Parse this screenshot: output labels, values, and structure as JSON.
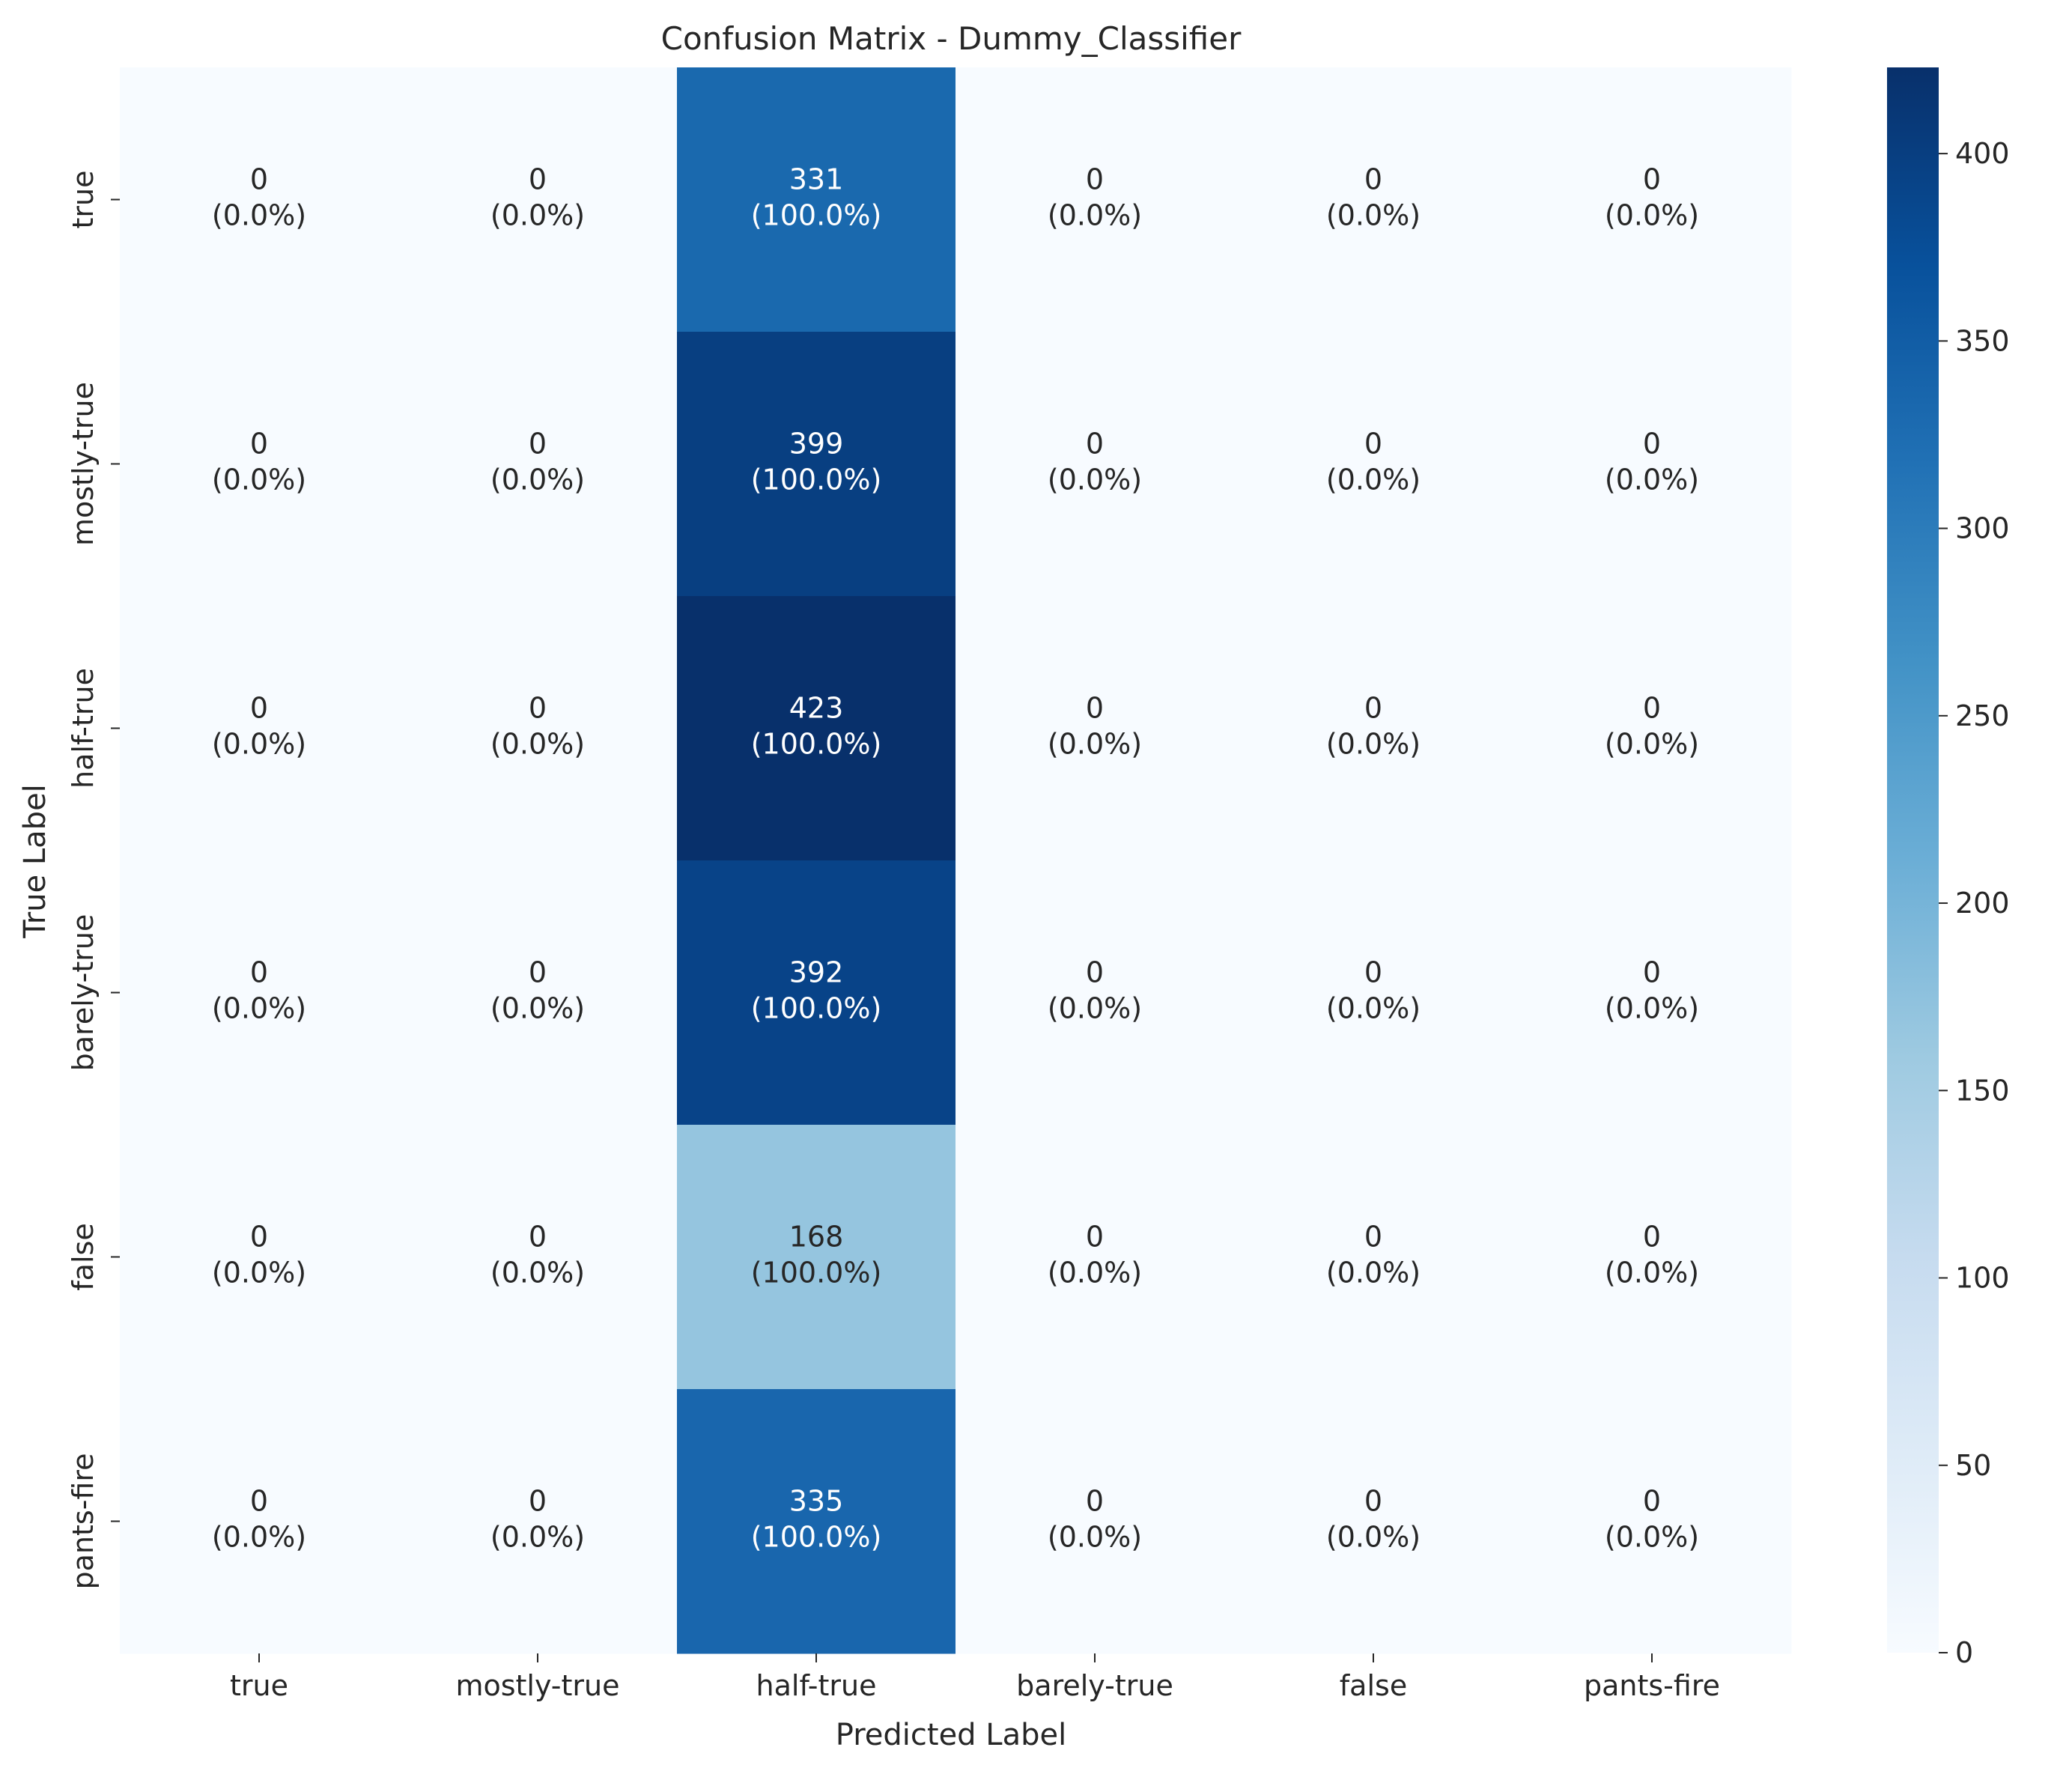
{
  "chart_data": {
    "type": "heatmap",
    "title": "Confusion Matrix - Dummy_Classifier",
    "xlabel": "Predicted Label",
    "ylabel": "True Label",
    "x_categories": [
      "true",
      "mostly-true",
      "half-true",
      "barely-true",
      "false",
      "pants-fire"
    ],
    "y_categories": [
      "true",
      "mostly-true",
      "half-true",
      "barely-true",
      "false",
      "pants-fire"
    ],
    "values": [
      [
        0,
        0,
        331,
        0,
        0,
        0
      ],
      [
        0,
        0,
        399,
        0,
        0,
        0
      ],
      [
        0,
        0,
        423,
        0,
        0,
        0
      ],
      [
        0,
        0,
        392,
        0,
        0,
        0
      ],
      [
        0,
        0,
        168,
        0,
        0,
        0
      ],
      [
        0,
        0,
        335,
        0,
        0,
        0
      ]
    ],
    "percentages": [
      [
        "0.0%",
        "0.0%",
        "100.0%",
        "0.0%",
        "0.0%",
        "0.0%"
      ],
      [
        "0.0%",
        "0.0%",
        "100.0%",
        "0.0%",
        "0.0%",
        "0.0%"
      ],
      [
        "0.0%",
        "0.0%",
        "100.0%",
        "0.0%",
        "0.0%",
        "0.0%"
      ],
      [
        "0.0%",
        "0.0%",
        "100.0%",
        "0.0%",
        "0.0%",
        "0.0%"
      ],
      [
        "0.0%",
        "0.0%",
        "100.0%",
        "0.0%",
        "0.0%",
        "0.0%"
      ],
      [
        "0.0%",
        "0.0%",
        "100.0%",
        "0.0%",
        "0.0%",
        "0.0%"
      ]
    ],
    "colorbar": {
      "colormap": "Blues",
      "range": [
        0,
        423
      ],
      "ticks": [
        0,
        50,
        100,
        150,
        200,
        250,
        300,
        350,
        400
      ]
    },
    "grid": false,
    "legend": "colorbar-right"
  }
}
